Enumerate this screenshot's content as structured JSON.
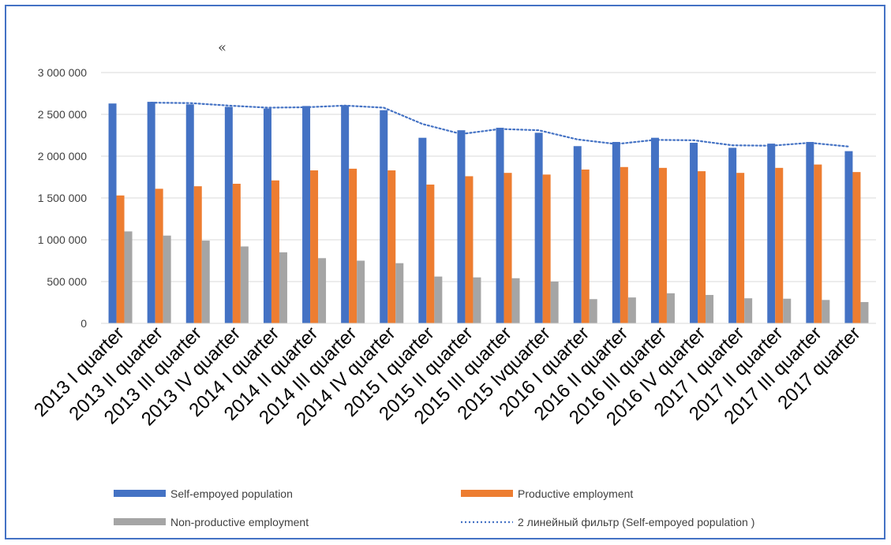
{
  "chart_data": {
    "type": "bar",
    "title": "",
    "annotation": "«",
    "xlabel": "",
    "ylabel": "",
    "ylim": [
      0,
      3000000
    ],
    "yticks": [
      0,
      500000,
      1000000,
      1500000,
      2000000,
      2500000,
      3000000
    ],
    "ytick_labels": [
      "0",
      "500 000",
      "1 000 000",
      "1 500 000",
      "2 000 000",
      "2 500 000",
      "3 000 000"
    ],
    "grid": true,
    "legend_position": "bottom",
    "categories": [
      "2013 I quarter",
      "2013 II quarter",
      "2013 III quarter",
      "2013 IV quarter",
      "2014 I quarter",
      "2014 II quarter",
      "2014 III quarter",
      "2014 IV quarter",
      "2015 I quarter",
      "2015 II quarter",
      "2015 III quarter",
      "2015 Ivquarter",
      "2016 I quarter",
      "2016 II quarter",
      "2016 III quarter",
      "2016 IV quarter",
      "2017 I quarter",
      "2017 II quarter",
      "2017 III quarter",
      "2017 quarter"
    ],
    "series": [
      {
        "name": "Self-empoyed population",
        "color": "#4472c4",
        "values": [
          2630000,
          2650000,
          2620000,
          2590000,
          2570000,
          2600000,
          2610000,
          2550000,
          2220000,
          2310000,
          2340000,
          2280000,
          2120000,
          2170000,
          2220000,
          2160000,
          2100000,
          2150000,
          2170000,
          2060000
        ]
      },
      {
        "name": "Productive employment",
        "color": "#ed7d31",
        "values": [
          1530000,
          1610000,
          1640000,
          1670000,
          1710000,
          1830000,
          1850000,
          1830000,
          1660000,
          1760000,
          1800000,
          1780000,
          1840000,
          1870000,
          1860000,
          1820000,
          1800000,
          1860000,
          1900000,
          1810000
        ]
      },
      {
        "name": "Non-productive employment",
        "color": "#a5a5a5",
        "values": [
          1100000,
          1050000,
          990000,
          920000,
          850000,
          780000,
          750000,
          720000,
          560000,
          550000,
          540000,
          500000,
          290000,
          310000,
          360000,
          340000,
          300000,
          295000,
          280000,
          255000
        ]
      }
    ],
    "trendline": {
      "name": "2 линейный фильтр (Self-empoyed population )",
      "type": "moving-average",
      "period": 2,
      "of_series": "Self-empoyed population",
      "color": "#4472c4",
      "style": "dotted"
    }
  }
}
